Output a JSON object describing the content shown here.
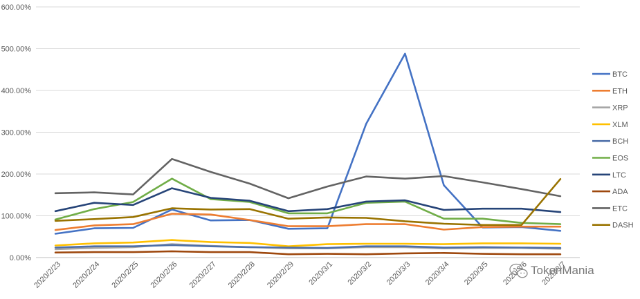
{
  "chart_data": {
    "type": "line",
    "title": "",
    "xlabel": "",
    "ylabel": "",
    "ylim": [
      0,
      600
    ],
    "y_unit": "%",
    "y_tick_values": [
      0,
      100,
      200,
      300,
      400,
      500,
      600
    ],
    "y_tick_labels": [
      "0.00%",
      "100.00%",
      "200.00%",
      "300.00%",
      "400.00%",
      "500.00%",
      "600.00%"
    ],
    "grid": "horizontal",
    "legend_position": "right",
    "categories": [
      "2020/2/23",
      "2020/2/24",
      "2020/2/25",
      "2020/2/26",
      "2020/2/27",
      "2020/2/28",
      "2020/2/29",
      "2020/3/1",
      "2020/3/2",
      "2020/3/3",
      "2020/3/4",
      "2020/3/5",
      "2020/3/6",
      "2020/3/7"
    ],
    "series": [
      {
        "name": "BTC",
        "color": "#4472C4",
        "values": [
          57,
          70,
          71,
          115,
          89,
          90,
          69,
          70,
          320,
          488,
          173,
          72,
          73,
          64
        ]
      },
      {
        "name": "ETH",
        "color": "#ED7D31",
        "values": [
          66,
          77,
          80,
          105,
          103,
          90,
          75,
          75,
          80,
          80,
          67,
          73,
          74,
          74
        ]
      },
      {
        "name": "XRP",
        "color": "#A5A5A5",
        "values": [
          20,
          23,
          25,
          32,
          28,
          25,
          22,
          22,
          25,
          25,
          22,
          23,
          23,
          21
        ]
      },
      {
        "name": "XLM",
        "color": "#FFC000",
        "values": [
          29,
          34,
          36,
          42,
          37,
          35,
          27,
          32,
          33,
          33,
          32,
          34,
          34,
          33
        ]
      },
      {
        "name": "BCH",
        "color": "#4E6FA8",
        "values": [
          24,
          27,
          27,
          30,
          27,
          25,
          24,
          23,
          27,
          27,
          24,
          25,
          24,
          23
        ]
      },
      {
        "name": "EOS",
        "color": "#70AD47",
        "values": [
          91,
          116,
          133,
          189,
          140,
          133,
          106,
          106,
          131,
          134,
          93,
          93,
          83,
          80
        ]
      },
      {
        "name": "LTC",
        "color": "#264478",
        "values": [
          111,
          131,
          126,
          166,
          143,
          136,
          111,
          116,
          134,
          137,
          114,
          117,
          117,
          109
        ]
      },
      {
        "name": "ADA",
        "color": "#9E480E",
        "values": [
          12,
          13,
          13,
          15,
          13,
          13,
          8,
          9,
          8,
          10,
          11,
          9,
          8,
          8
        ]
      },
      {
        "name": "ETC",
        "color": "#636363",
        "values": [
          154,
          156,
          151,
          236,
          205,
          177,
          142,
          170,
          194,
          189,
          195,
          180,
          164,
          147
        ]
      },
      {
        "name": "DASH",
        "color": "#997300",
        "values": [
          88,
          92,
          97,
          118,
          115,
          116,
          93,
          96,
          95,
          87,
          81,
          78,
          78,
          188
        ]
      }
    ]
  },
  "watermark": {
    "text": "TokenMania",
    "icon": "wechat-icon"
  }
}
